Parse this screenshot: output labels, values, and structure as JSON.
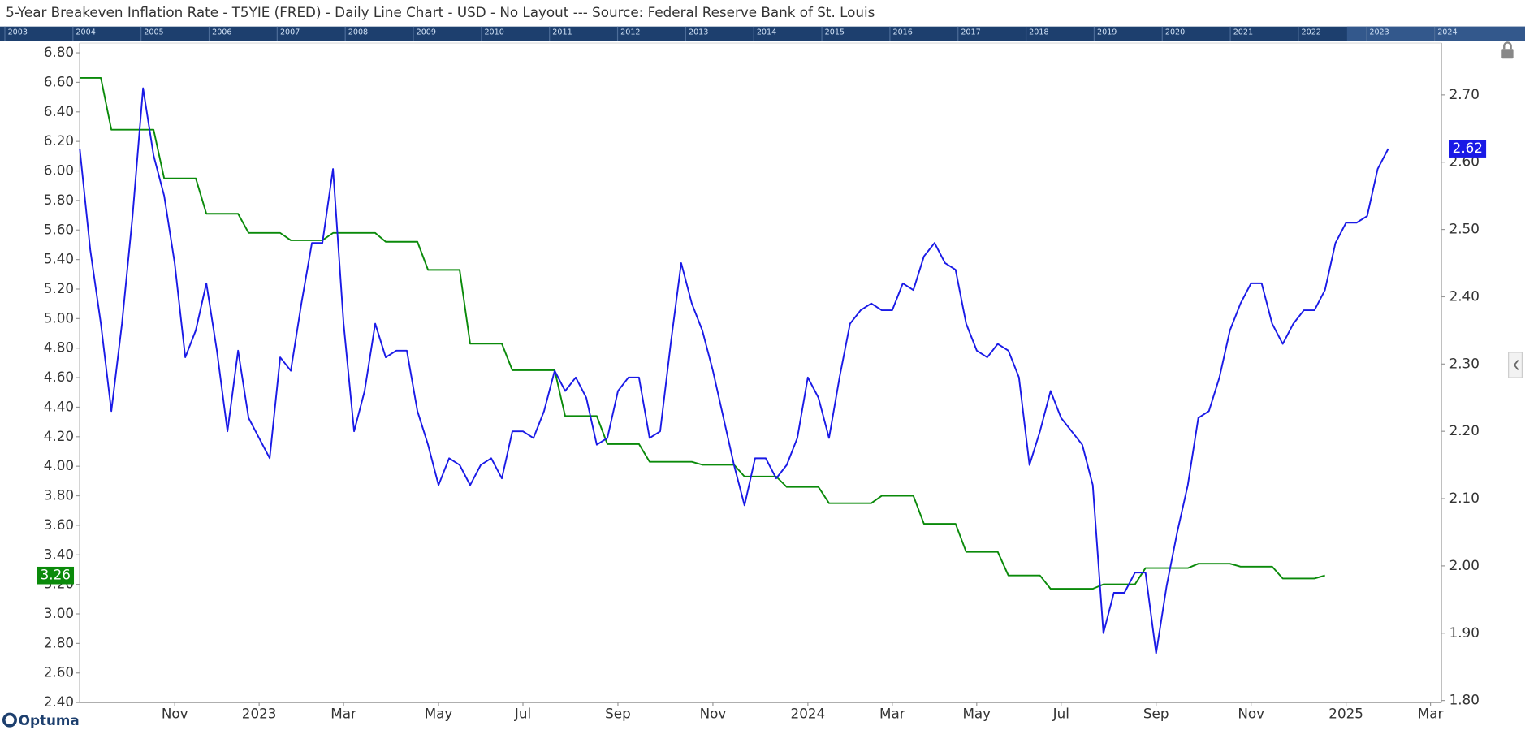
{
  "chart_data": {
    "type": "line",
    "title": "5-Year Breakeven Inflation Rate - T5YIE (FRED) - Daily Line Chart - USD - No Layout --- Source: Federal Reserve Bank of St. Louis",
    "navigator_years": [
      "2003",
      "2004",
      "2005",
      "2006",
      "2007",
      "2008",
      "2009",
      "2010",
      "2011",
      "2012",
      "2013",
      "2014",
      "2015",
      "2016",
      "2017",
      "2018",
      "2019",
      "2020",
      "2021",
      "2022",
      "2023",
      "2024"
    ],
    "brand": "Optuma",
    "categories": [
      null,
      null,
      null,
      null,
      null,
      null,
      null,
      null,
      null,
      "Nov",
      null,
      null,
      null,
      null,
      null,
      null,
      null,
      "2023",
      null,
      null,
      null,
      null,
      null,
      null,
      null,
      "Mar",
      null,
      null,
      null,
      null,
      null,
      null,
      null,
      null,
      "May",
      null,
      null,
      null,
      null,
      null,
      null,
      null,
      "Jul",
      null,
      null,
      null,
      null,
      null,
      null,
      null,
      null,
      "Sep",
      null,
      null,
      null,
      null,
      null,
      null,
      null,
      null,
      "Nov",
      null,
      null,
      null,
      null,
      null,
      null,
      null,
      null,
      "2024",
      null,
      null,
      null,
      null,
      null,
      null,
      null,
      "Mar",
      null,
      null,
      null,
      null,
      null,
      null,
      null,
      "May",
      null,
      null,
      null,
      null,
      null,
      null,
      null,
      "Jul",
      null,
      null,
      null,
      null,
      null,
      null,
      null,
      null,
      "Sep",
      null,
      null,
      null,
      null,
      null,
      null,
      null,
      null,
      "Nov",
      null,
      null,
      null,
      null,
      null,
      null,
      null,
      null,
      "2025",
      null,
      null,
      null,
      null,
      null,
      null,
      null,
      "Mar",
      null
    ],
    "series": [
      {
        "color": "#0a8a0a",
        "axis": "y",
        "values": [
          6.63,
          6.63,
          6.63,
          6.28,
          6.28,
          6.28,
          6.28,
          6.28,
          5.95,
          5.95,
          5.95,
          5.95,
          5.71,
          5.71,
          5.71,
          5.71,
          5.58,
          5.58,
          5.58,
          5.58,
          5.53,
          5.53,
          5.53,
          5.53,
          5.58,
          5.58,
          5.58,
          5.58,
          5.58,
          5.52,
          5.52,
          5.52,
          5.52,
          5.33,
          5.33,
          5.33,
          5.33,
          4.83,
          4.83,
          4.83,
          4.83,
          4.65,
          4.65,
          4.65,
          4.65,
          4.65,
          4.34,
          4.34,
          4.34,
          4.34,
          4.15,
          4.15,
          4.15,
          4.15,
          4.03,
          4.03,
          4.03,
          4.03,
          4.03,
          4.01,
          4.01,
          4.01,
          4.01,
          3.93,
          3.93,
          3.93,
          3.93,
          3.86,
          3.86,
          3.86,
          3.86,
          3.75,
          3.75,
          3.75,
          3.75,
          3.75,
          3.8,
          3.8,
          3.8,
          3.8,
          3.61,
          3.61,
          3.61,
          3.61,
          3.42,
          3.42,
          3.42,
          3.42,
          3.26,
          3.26,
          3.26,
          3.26,
          3.17,
          3.17,
          3.17,
          3.17,
          3.17,
          3.2,
          3.2,
          3.2,
          3.2,
          3.31,
          3.31,
          3.31,
          3.31,
          3.31,
          3.34,
          3.34,
          3.34,
          3.34,
          3.32,
          3.32,
          3.32,
          3.32,
          3.24,
          3.24,
          3.24,
          3.24,
          3.26,
          null,
          null,
          null,
          null,
          null,
          null,
          null,
          null,
          null,
          null,
          null
        ]
      },
      {
        "color": "#1a1ae6",
        "axis": "y2",
        "values": [
          2.62,
          2.47,
          2.36,
          2.23,
          2.36,
          2.52,
          2.71,
          2.61,
          2.55,
          2.45,
          2.31,
          2.35,
          2.42,
          2.32,
          2.2,
          2.32,
          2.22,
          2.19,
          2.16,
          2.31,
          2.29,
          2.39,
          2.48,
          2.48,
          2.59,
          2.36,
          2.2,
          2.26,
          2.36,
          2.31,
          2.32,
          2.32,
          2.23,
          2.18,
          2.12,
          2.16,
          2.15,
          2.12,
          2.15,
          2.16,
          2.13,
          2.2,
          2.2,
          2.19,
          2.23,
          2.29,
          2.26,
          2.28,
          2.25,
          2.18,
          2.19,
          2.26,
          2.28,
          2.28,
          2.19,
          2.2,
          2.33,
          2.45,
          2.39,
          2.35,
          2.29,
          2.22,
          2.15,
          2.09,
          2.16,
          2.16,
          2.13,
          2.15,
          2.19,
          2.28,
          2.25,
          2.19,
          2.28,
          2.36,
          2.38,
          2.39,
          2.38,
          2.38,
          2.42,
          2.41,
          2.46,
          2.48,
          2.45,
          2.44,
          2.36,
          2.32,
          2.31,
          2.33,
          2.32,
          2.28,
          2.15,
          2.2,
          2.26,
          2.22,
          2.2,
          2.18,
          2.12,
          1.9,
          1.96,
          1.96,
          1.99,
          1.99,
          1.87,
          1.97,
          2.05,
          2.12,
          2.22,
          2.23,
          2.28,
          2.35,
          2.39,
          2.42,
          2.42,
          2.36,
          2.33,
          2.36,
          2.38,
          2.38,
          2.41,
          2.48,
          2.51,
          2.51,
          2.52,
          2.59,
          2.62,
          null,
          null,
          null,
          null,
          null
        ]
      }
    ],
    "ylim": [
      2.4,
      6.866
    ],
    "yticks": [
      {
        "value": 2.4,
        "label": "2.40"
      },
      {
        "value": 2.6,
        "label": "2.60"
      },
      {
        "value": 2.8,
        "label": "2.80"
      },
      {
        "value": 3,
        "label": "3.00"
      },
      {
        "value": 3.2,
        "label": "3.20"
      },
      {
        "value": 3.4,
        "label": "3.40"
      },
      {
        "value": 3.6,
        "label": "3.60"
      },
      {
        "value": 3.8,
        "label": "3.80"
      },
      {
        "value": 4,
        "label": "4.00"
      },
      {
        "value": 4.2,
        "label": "4.20"
      },
      {
        "value": 4.4,
        "label": "4.40"
      },
      {
        "value": 4.6,
        "label": "4.60"
      },
      {
        "value": 4.8,
        "label": "4.80"
      },
      {
        "value": 5,
        "label": "5.00"
      },
      {
        "value": 5.2,
        "label": "5.20"
      },
      {
        "value": 5.4,
        "label": "5.40"
      },
      {
        "value": 5.6,
        "label": "5.60"
      },
      {
        "value": 5.8,
        "label": "5.80"
      },
      {
        "value": 6,
        "label": "6.00"
      },
      {
        "value": 6.2,
        "label": "6.20"
      },
      {
        "value": 6.4,
        "label": "6.40"
      },
      {
        "value": 6.6,
        "label": "6.60"
      },
      {
        "value": 6.8,
        "label": "6.80"
      }
    ],
    "y2lim": [
      1.797,
      2.777
    ],
    "y2ticks": [
      {
        "value": 1.8,
        "label": "1.80"
      },
      {
        "value": 1.9,
        "label": "1.90"
      },
      {
        "value": 2,
        "label": "2.00"
      },
      {
        "value": 2.1,
        "label": "2.10"
      },
      {
        "value": 2.2,
        "label": "2.20"
      },
      {
        "value": 2.3,
        "label": "2.30"
      },
      {
        "value": 2.4,
        "label": "2.40"
      },
      {
        "value": 2.5,
        "label": "2.50"
      },
      {
        "value": 2.6,
        "label": "2.60"
      },
      {
        "value": 2.7,
        "label": "2.70"
      }
    ],
    "grid": false
  }
}
